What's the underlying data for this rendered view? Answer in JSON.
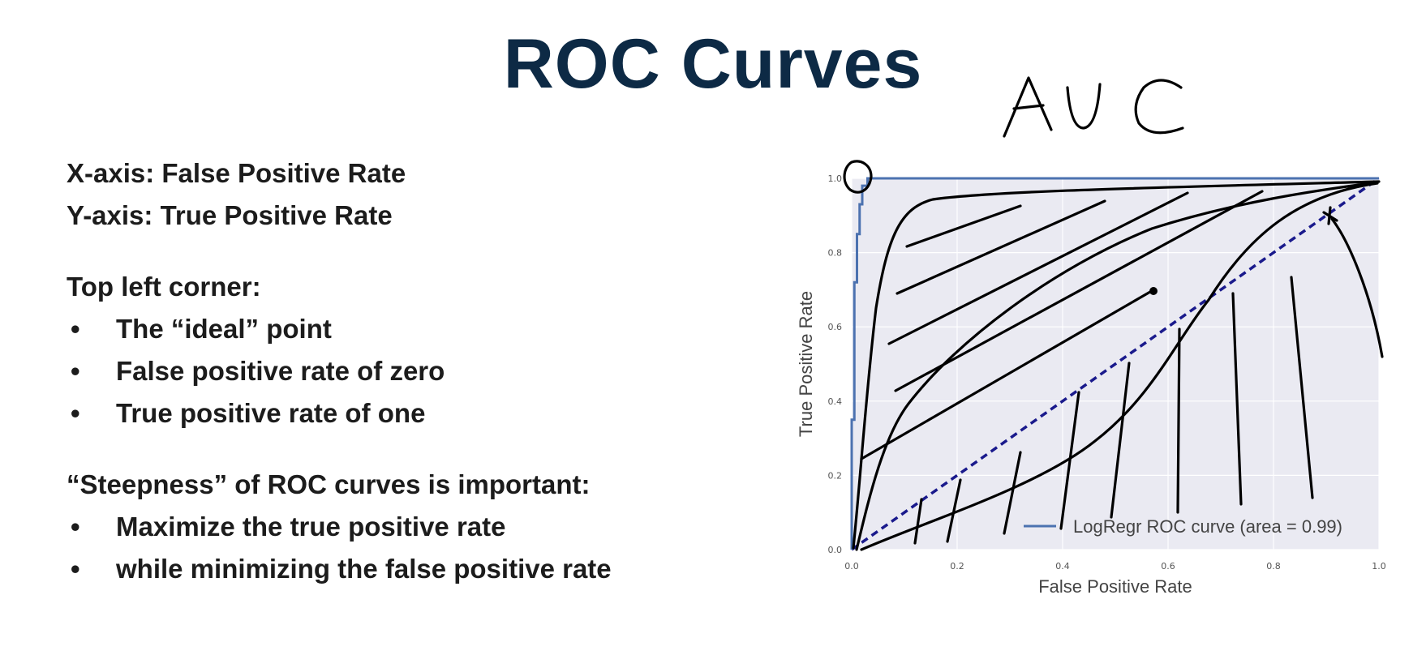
{
  "title": "ROC Curves",
  "left_panel": {
    "axis_lines": [
      "X-axis:  False Positive Rate",
      "Y-axis:  True Positive Rate"
    ],
    "corner_heading": "Top left corner:",
    "corner_bullets": [
      "The “ideal” point",
      "False positive rate of zero",
      "True positive rate of one"
    ],
    "steepness_heading": "“Steepness” of ROC curves is important:",
    "steepness_bullets": [
      "Maximize the true positive rate",
      "while minimizing the false positive rate"
    ]
  },
  "annotation": {
    "handwritten_text": "AUC"
  },
  "colors": {
    "title": "#0d2a45",
    "roc_line": "#4c72b0",
    "diagonal": "#1a1a8c",
    "plot_background": "#eaeaf2",
    "ink": "#000000"
  },
  "chart_data": {
    "type": "line",
    "xlabel": "False Positive Rate",
    "ylabel": "True Positive Rate",
    "xlim": [
      0,
      1
    ],
    "ylim": [
      0,
      1
    ],
    "x_ticks": [
      "0.0",
      "0.2",
      "0.4",
      "0.6",
      "0.8",
      "1.0"
    ],
    "y_ticks": [
      "0.0",
      "0.2",
      "0.4",
      "0.6",
      "0.8",
      "1.0"
    ],
    "grid": true,
    "legend_position": "bottom-right",
    "series": [
      {
        "name": "LogRegr ROC curve (area = 0.99)",
        "style": "solid",
        "x": [
          0.0,
          0.0,
          0.005,
          0.005,
          0.01,
          0.01,
          0.015,
          0.015,
          0.02,
          0.02,
          0.03,
          0.03,
          1.0
        ],
        "y": [
          0.0,
          0.35,
          0.35,
          0.72,
          0.72,
          0.85,
          0.85,
          0.93,
          0.93,
          0.98,
          0.98,
          1.0,
          1.0
        ]
      },
      {
        "style": "dashed",
        "x": [
          0,
          1
        ],
        "y": [
          0,
          1
        ]
      }
    ]
  }
}
